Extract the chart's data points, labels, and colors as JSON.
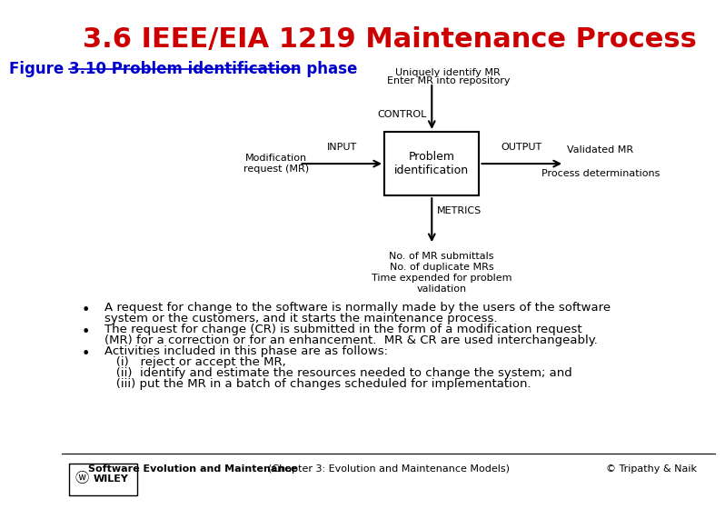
{
  "title": "3.6 IEEE/EIA 1219 Maintenance Process",
  "title_color": "#CC0000",
  "title_fontsize": 22,
  "bg_color": "#FFFFFF",
  "figure_label": "Figure 3.10 Problem identification phase",
  "figure_label_color": "#0000CC",
  "figure_label_fontsize": 12,
  "box_label": "Problem\nidentification",
  "control_label": "CONTROL",
  "input_label": "INPUT",
  "output_label": "OUTPUT",
  "metrics_label": "METRICS",
  "left_label": "Modification\nrequest (MR)",
  "right_label1": "Validated MR",
  "right_label2": "Process determinations",
  "top_label1": "Uniquely identify MR",
  "top_label2": "Enter MR into repository",
  "bottom_label1": "No. of MR submittals",
  "bottom_label2": "No. of duplicate MRs",
  "bottom_label3": "Time expended for problem",
  "bottom_label4": "validation",
  "bullet1_line1": "A request for change to the software is normally made by the users of the software",
  "bullet1_line2": "system or the customers, and it starts the maintenance process.",
  "bullet2_line1": "The request for change (CR) is submitted in the form of a modification request",
  "bullet2_line2": "(MR) for a correction or for an enhancement.  MR & CR are used interchangeably.",
  "bullet3_line1": "Activities included in this phase are as follows:",
  "bullet3_line2": "   (i)   reject or accept the MR,",
  "bullet3_line3": "   (ii)  identify and estimate the resources needed to change the system; and",
  "bullet3_line4": "   (iii) put the MR in a batch of changes scheduled for implementation.",
  "footer_left": "Software Evolution and Maintenance",
  "footer_mid": "(Chapter 3: Evolution and Maintenance Models)",
  "footer_right": "© Tripathy & Naik",
  "text_fontsize": 9.5,
  "footer_fontsize": 8
}
